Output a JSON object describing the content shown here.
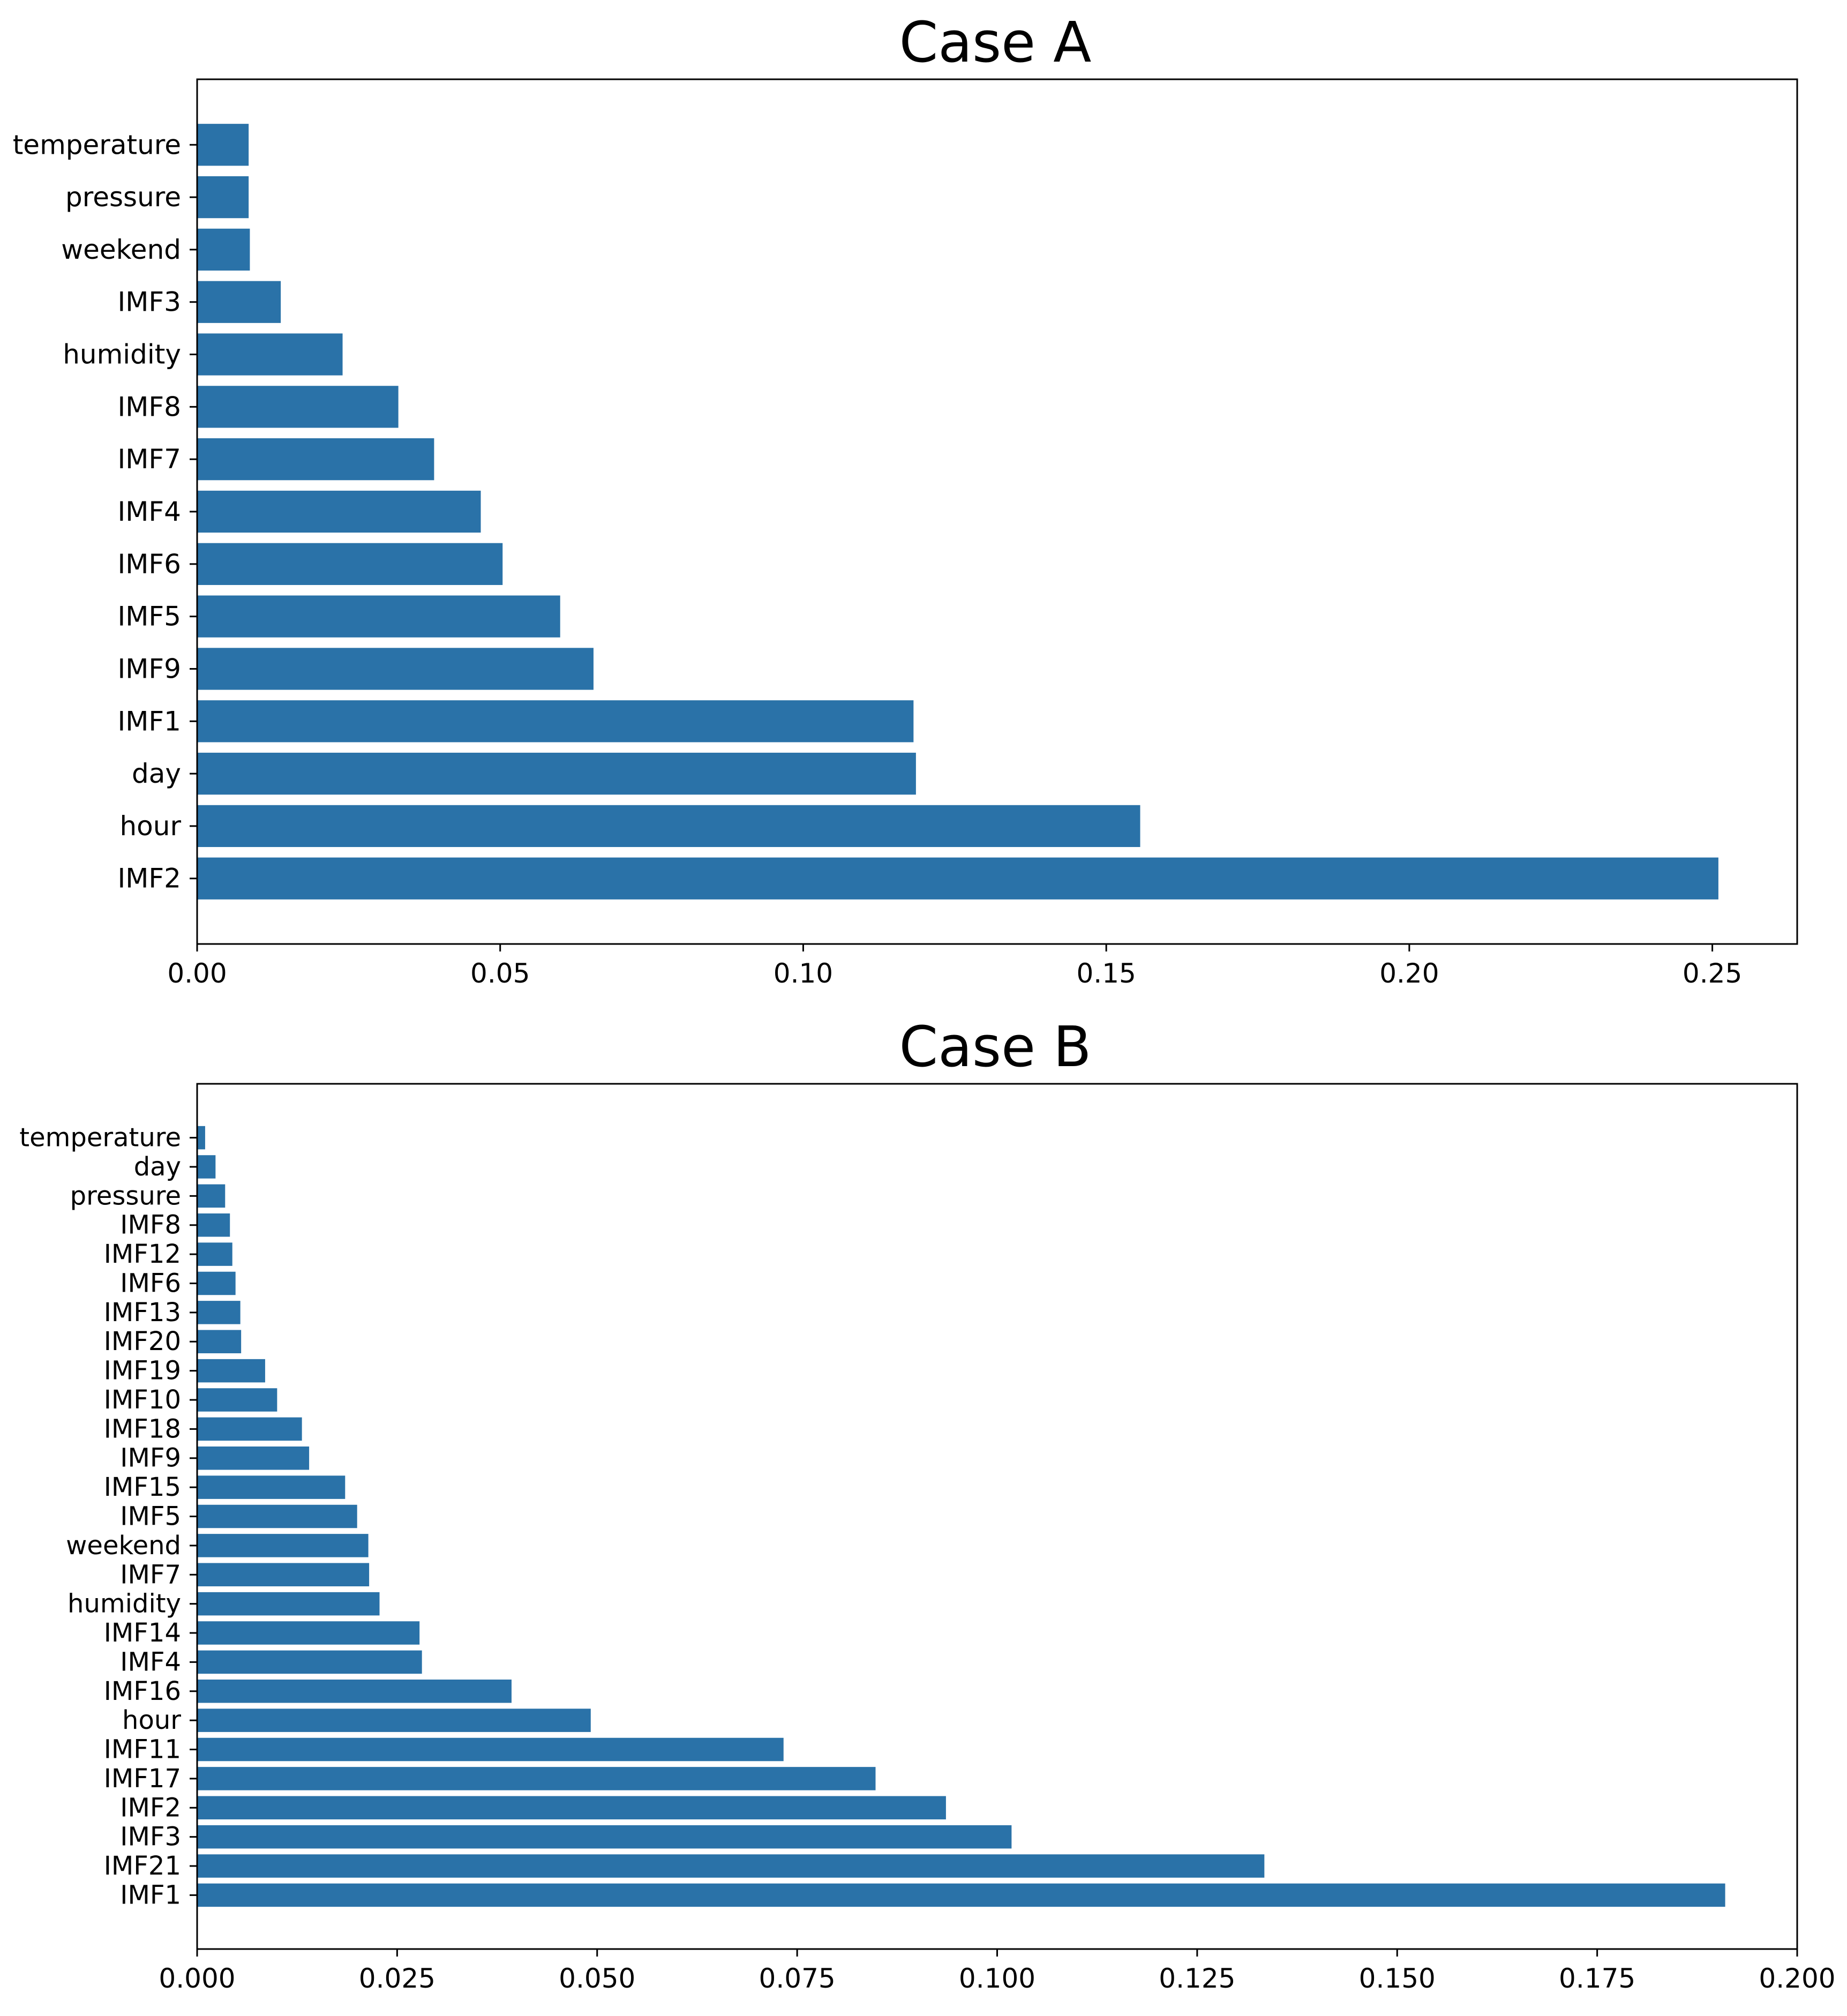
{
  "chart_data": [
    {
      "type": "bar",
      "orientation": "horizontal",
      "title": "Case A",
      "xlabel": "",
      "ylabel": "",
      "xlim": [
        0,
        0.264
      ],
      "xticks": [
        "0.00",
        "0.05",
        "0.10",
        "0.15",
        "0.20",
        "0.25"
      ],
      "xtick_values": [
        0.0,
        0.05,
        0.1,
        0.15,
        0.2,
        0.25
      ],
      "categories": [
        "temperature",
        "pressure",
        "weekend",
        "IMF3",
        "humidity",
        "IMF8",
        "IMF7",
        "IMF4",
        "IMF6",
        "IMF5",
        "IMF9",
        "IMF1",
        "day",
        "hour",
        "IMF2"
      ],
      "values": [
        0.0085,
        0.0085,
        0.0087,
        0.0138,
        0.024,
        0.0332,
        0.0391,
        0.0468,
        0.0504,
        0.0599,
        0.0654,
        0.1182,
        0.1186,
        0.1556,
        0.251
      ],
      "bar_color": "#2a72a8",
      "grid": false,
      "legend": "none"
    },
    {
      "type": "bar",
      "orientation": "horizontal",
      "title": "Case B",
      "xlabel": "",
      "ylabel": "",
      "xlim": [
        0,
        0.2
      ],
      "xticks": [
        "0.000",
        "0.025",
        "0.050",
        "0.075",
        "0.100",
        "0.125",
        "0.150",
        "0.175",
        "0.200"
      ],
      "xtick_values": [
        0.0,
        0.025,
        0.05,
        0.075,
        0.1,
        0.125,
        0.15,
        0.175,
        0.2
      ],
      "categories": [
        "temperature",
        "day",
        "pressure",
        "IMF8",
        "IMF12",
        "IMF6",
        "IMF13",
        "IMF20",
        "IMF19",
        "IMF10",
        "IMF18",
        "IMF9",
        "IMF15",
        "IMF5",
        "weekend",
        "IMF7",
        "humidity",
        "IMF14",
        "IMF4",
        "IMF16",
        "hour",
        "IMF11",
        "IMF17",
        "IMF2",
        "IMF3",
        "IMF21",
        "IMF1"
      ],
      "values": [
        0.001,
        0.0023,
        0.0035,
        0.0041,
        0.0044,
        0.0048,
        0.0054,
        0.0055,
        0.0085,
        0.01,
        0.0131,
        0.014,
        0.0185,
        0.02,
        0.0214,
        0.0215,
        0.0228,
        0.0278,
        0.0281,
        0.0393,
        0.0492,
        0.0733,
        0.0848,
        0.0936,
        0.1018,
        0.1334,
        0.191
      ],
      "bar_color": "#2a72a8",
      "grid": false,
      "legend": "none"
    }
  ]
}
